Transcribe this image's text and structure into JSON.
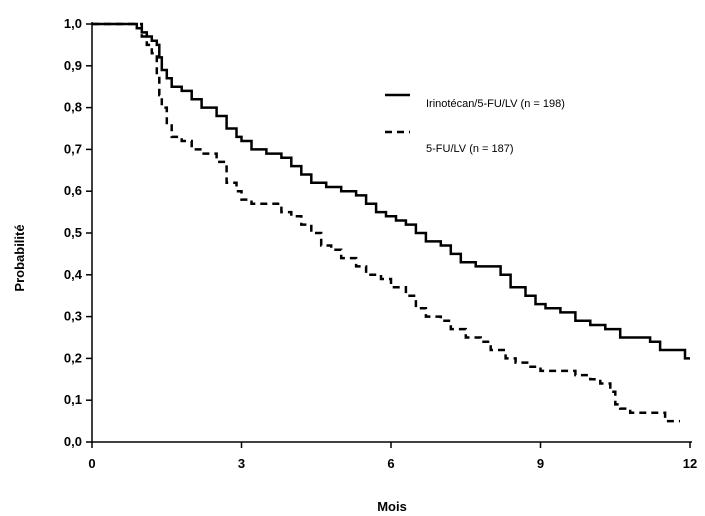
{
  "chart_data": {
    "type": "line",
    "xlabel": "Mois",
    "ylabel": "Probabilité",
    "xlim": [
      0,
      12
    ],
    "ylim": [
      0,
      1
    ],
    "x_ticks": [
      {
        "value": 0,
        "label": "0"
      },
      {
        "value": 3,
        "label": "3"
      },
      {
        "value": 6,
        "label": "6"
      },
      {
        "value": 9,
        "label": "9"
      },
      {
        "value": 12,
        "label": "12"
      }
    ],
    "y_ticks": [
      {
        "value": 0.0,
        "label": "0,0"
      },
      {
        "value": 0.1,
        "label": "0,1"
      },
      {
        "value": 0.2,
        "label": "0,2"
      },
      {
        "value": 0.3,
        "label": "0,3"
      },
      {
        "value": 0.4,
        "label": "0,4"
      },
      {
        "value": 0.5,
        "label": "0,5"
      },
      {
        "value": 0.6,
        "label": "0,6"
      },
      {
        "value": 0.7,
        "label": "0,7"
      },
      {
        "value": 0.8,
        "label": "0,8"
      },
      {
        "value": 0.9,
        "label": "0,9"
      },
      {
        "value": 1.0,
        "label": "1,0"
      }
    ],
    "grid": false,
    "legend_position": "top-right",
    "series": [
      {
        "name": "Irinotécan/5-FU/LV (n = 198)",
        "style": "solid",
        "color": "#000000",
        "points": [
          [
            0,
            1.0
          ],
          [
            0.8,
            1.0
          ],
          [
            0.9,
            0.99
          ],
          [
            1.0,
            0.98
          ],
          [
            1.1,
            0.97
          ],
          [
            1.2,
            0.96
          ],
          [
            1.3,
            0.95
          ],
          [
            1.35,
            0.92
          ],
          [
            1.4,
            0.89
          ],
          [
            1.5,
            0.87
          ],
          [
            1.6,
            0.85
          ],
          [
            1.8,
            0.84
          ],
          [
            2.0,
            0.82
          ],
          [
            2.2,
            0.8
          ],
          [
            2.5,
            0.78
          ],
          [
            2.7,
            0.75
          ],
          [
            2.9,
            0.73
          ],
          [
            3.0,
            0.72
          ],
          [
            3.2,
            0.7
          ],
          [
            3.5,
            0.69
          ],
          [
            3.8,
            0.68
          ],
          [
            4.0,
            0.66
          ],
          [
            4.2,
            0.64
          ],
          [
            4.4,
            0.62
          ],
          [
            4.7,
            0.61
          ],
          [
            5.0,
            0.6
          ],
          [
            5.3,
            0.59
          ],
          [
            5.5,
            0.57
          ],
          [
            5.7,
            0.55
          ],
          [
            5.9,
            0.54
          ],
          [
            6.1,
            0.53
          ],
          [
            6.3,
            0.52
          ],
          [
            6.5,
            0.5
          ],
          [
            6.7,
            0.48
          ],
          [
            7.0,
            0.47
          ],
          [
            7.2,
            0.45
          ],
          [
            7.4,
            0.43
          ],
          [
            7.7,
            0.42
          ],
          [
            8.0,
            0.42
          ],
          [
            8.2,
            0.4
          ],
          [
            8.4,
            0.37
          ],
          [
            8.7,
            0.35
          ],
          [
            8.9,
            0.33
          ],
          [
            9.1,
            0.32
          ],
          [
            9.4,
            0.31
          ],
          [
            9.7,
            0.29
          ],
          [
            10.0,
            0.28
          ],
          [
            10.3,
            0.27
          ],
          [
            10.6,
            0.25
          ],
          [
            11.0,
            0.25
          ],
          [
            11.2,
            0.24
          ],
          [
            11.4,
            0.22
          ],
          [
            11.8,
            0.22
          ],
          [
            11.9,
            0.2
          ],
          [
            12.0,
            0.2
          ]
        ]
      },
      {
        "name": "5-FU/LV (n = 187)",
        "style": "dashed",
        "color": "#000000",
        "points": [
          [
            0,
            1.0
          ],
          [
            0.8,
            1.0
          ],
          [
            1.0,
            0.97
          ],
          [
            1.1,
            0.95
          ],
          [
            1.2,
            0.93
          ],
          [
            1.3,
            0.88
          ],
          [
            1.35,
            0.83
          ],
          [
            1.4,
            0.8
          ],
          [
            1.5,
            0.76
          ],
          [
            1.6,
            0.73
          ],
          [
            1.8,
            0.72
          ],
          [
            2.0,
            0.7
          ],
          [
            2.2,
            0.69
          ],
          [
            2.5,
            0.67
          ],
          [
            2.7,
            0.62
          ],
          [
            2.9,
            0.6
          ],
          [
            3.0,
            0.58
          ],
          [
            3.2,
            0.57
          ],
          [
            3.5,
            0.57
          ],
          [
            3.8,
            0.55
          ],
          [
            4.0,
            0.54
          ],
          [
            4.2,
            0.52
          ],
          [
            4.4,
            0.5
          ],
          [
            4.6,
            0.47
          ],
          [
            4.8,
            0.46
          ],
          [
            5.0,
            0.44
          ],
          [
            5.3,
            0.42
          ],
          [
            5.5,
            0.4
          ],
          [
            5.8,
            0.39
          ],
          [
            6.0,
            0.37
          ],
          [
            6.3,
            0.35
          ],
          [
            6.5,
            0.32
          ],
          [
            6.7,
            0.3
          ],
          [
            7.0,
            0.29
          ],
          [
            7.2,
            0.27
          ],
          [
            7.5,
            0.25
          ],
          [
            7.8,
            0.24
          ],
          [
            8.0,
            0.22
          ],
          [
            8.3,
            0.2
          ],
          [
            8.5,
            0.19
          ],
          [
            8.8,
            0.18
          ],
          [
            9.0,
            0.17
          ],
          [
            9.3,
            0.17
          ],
          [
            9.7,
            0.16
          ],
          [
            10.0,
            0.15
          ],
          [
            10.2,
            0.14
          ],
          [
            10.4,
            0.12
          ],
          [
            10.5,
            0.09
          ],
          [
            10.6,
            0.08
          ],
          [
            10.8,
            0.07
          ],
          [
            11.0,
            0.07
          ],
          [
            11.4,
            0.07
          ],
          [
            11.5,
            0.05
          ],
          [
            11.8,
            0.05
          ]
        ]
      }
    ]
  }
}
